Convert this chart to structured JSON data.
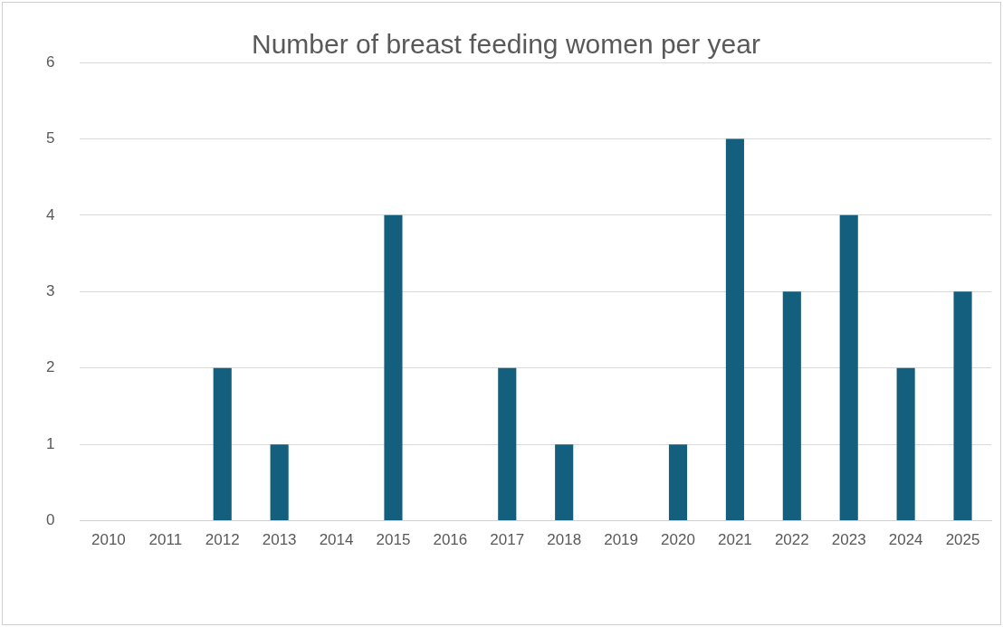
{
  "chart_data": {
    "type": "bar",
    "title": "Number of breast feeding women per year",
    "categories": [
      "2010",
      "2011",
      "2012",
      "2013",
      "2014",
      "2015",
      "2016",
      "2017",
      "2018",
      "2019",
      "2020",
      "2021",
      "2022",
      "2023",
      "2024",
      "2025"
    ],
    "values": [
      0,
      0,
      2,
      1,
      0,
      4,
      0,
      2,
      1,
      0,
      1,
      5,
      3,
      4,
      2,
      3
    ],
    "color": "#145e7e",
    "ylim": [
      0,
      6
    ],
    "yticks": [
      0,
      1,
      2,
      3,
      4,
      5,
      6
    ],
    "grid": "y",
    "legend": false
  }
}
